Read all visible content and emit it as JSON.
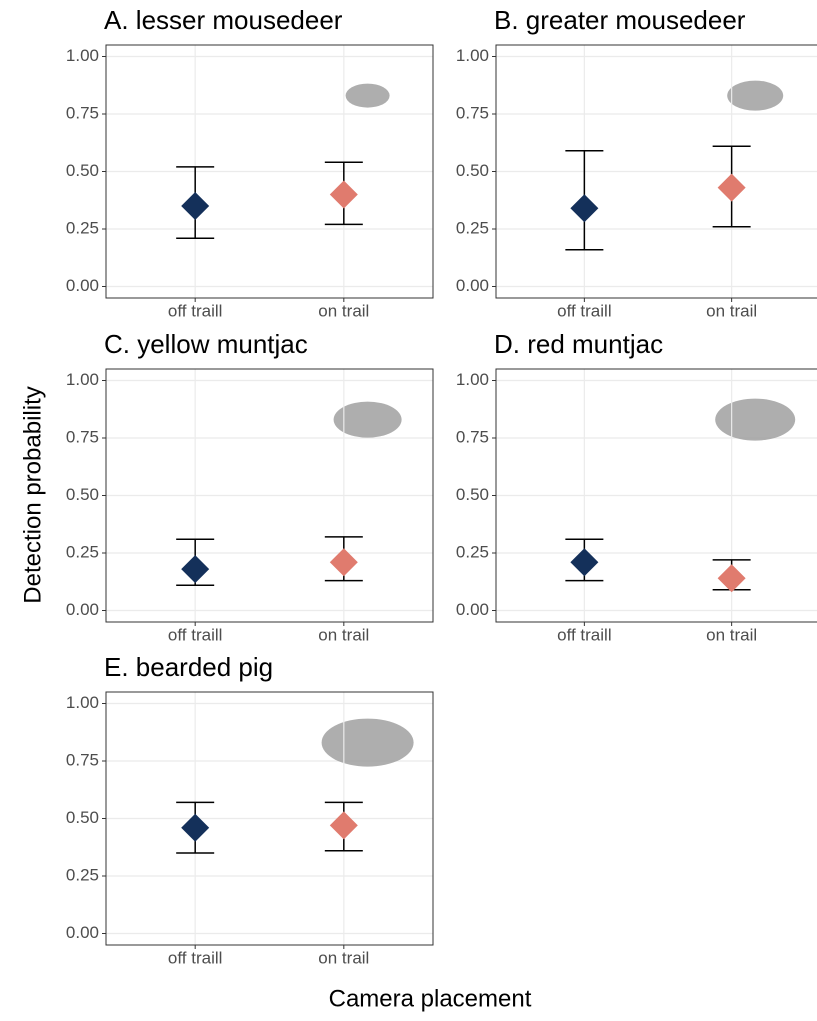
{
  "ylabel": "Detection probability",
  "xlabel": "Camera placement",
  "chart_data": [
    {
      "type": "errorbar",
      "title": "A. lesser mousedeer",
      "categories": [
        "off traill",
        "on trail"
      ],
      "values": [
        0.35,
        0.4
      ],
      "lower": [
        0.21,
        0.27
      ],
      "upper": [
        0.52,
        0.54
      ],
      "colors": [
        "#14305a",
        "#e07b6e"
      ],
      "ylim": [
        -0.05,
        1.05
      ],
      "yticks": [
        {
          "value": 0,
          "label": "0.00"
        },
        0.25,
        {
          "value": 0.5,
          "label": "0.50"
        },
        0.75,
        {
          "value": 1,
          "label": "1.00"
        }
      ],
      "grid": true
    },
    {
      "type": "errorbar",
      "title": "B. greater mousedeer",
      "categories": [
        "off traill",
        "on trail"
      ],
      "values": [
        0.34,
        0.43
      ],
      "lower": [
        0.16,
        0.26
      ],
      "upper": [
        0.59,
        0.61
      ],
      "colors": [
        "#14305a",
        "#e07b6e"
      ],
      "ylim": [
        -0.05,
        1.05
      ],
      "yticks": [
        {
          "value": 0,
          "label": "0.00"
        },
        0.25,
        {
          "value": 0.5,
          "label": "0.50"
        },
        0.75,
        {
          "value": 1,
          "label": "1.00"
        }
      ],
      "grid": true
    },
    {
      "type": "errorbar",
      "title": "C. yellow muntjac",
      "categories": [
        "off traill",
        "on trail"
      ],
      "values": [
        0.18,
        0.21
      ],
      "lower": [
        0.11,
        0.13
      ],
      "upper": [
        0.31,
        0.32
      ],
      "colors": [
        "#14305a",
        "#e07b6e"
      ],
      "ylim": [
        -0.05,
        1.05
      ],
      "yticks": [
        {
          "value": 0,
          "label": "0.00"
        },
        0.25,
        {
          "value": 0.5,
          "label": "0.50"
        },
        0.75,
        {
          "value": 1,
          "label": "1.00"
        }
      ],
      "grid": true
    },
    {
      "type": "errorbar",
      "title": "D. red muntjac",
      "categories": [
        "off traill",
        "on trail"
      ],
      "values": [
        0.21,
        0.14
      ],
      "lower": [
        0.13,
        0.09
      ],
      "upper": [
        0.31,
        0.22
      ],
      "colors": [
        "#14305a",
        "#e07b6e"
      ],
      "ylim": [
        -0.05,
        1.05
      ],
      "yticks": [
        {
          "value": 0,
          "label": "0.00"
        },
        0.25,
        {
          "value": 0.5,
          "label": "0.50"
        },
        0.75,
        {
          "value": 1,
          "label": "1.00"
        }
      ],
      "grid": true
    },
    {
      "type": "errorbar",
      "title": "E. bearded pig",
      "categories": [
        "off traill",
        "on trail"
      ],
      "values": [
        0.46,
        0.47
      ],
      "lower": [
        0.35,
        0.36
      ],
      "upper": [
        0.57,
        0.57
      ],
      "colors": [
        "#14305a",
        "#e07b6e"
      ],
      "ylim": [
        -0.05,
        1.05
      ],
      "yticks": [
        {
          "value": 0,
          "label": "0.00"
        },
        0.25,
        {
          "value": 0.5,
          "label": "0.50"
        },
        0.75,
        {
          "value": 1,
          "label": "1.00"
        }
      ],
      "grid": true
    }
  ]
}
